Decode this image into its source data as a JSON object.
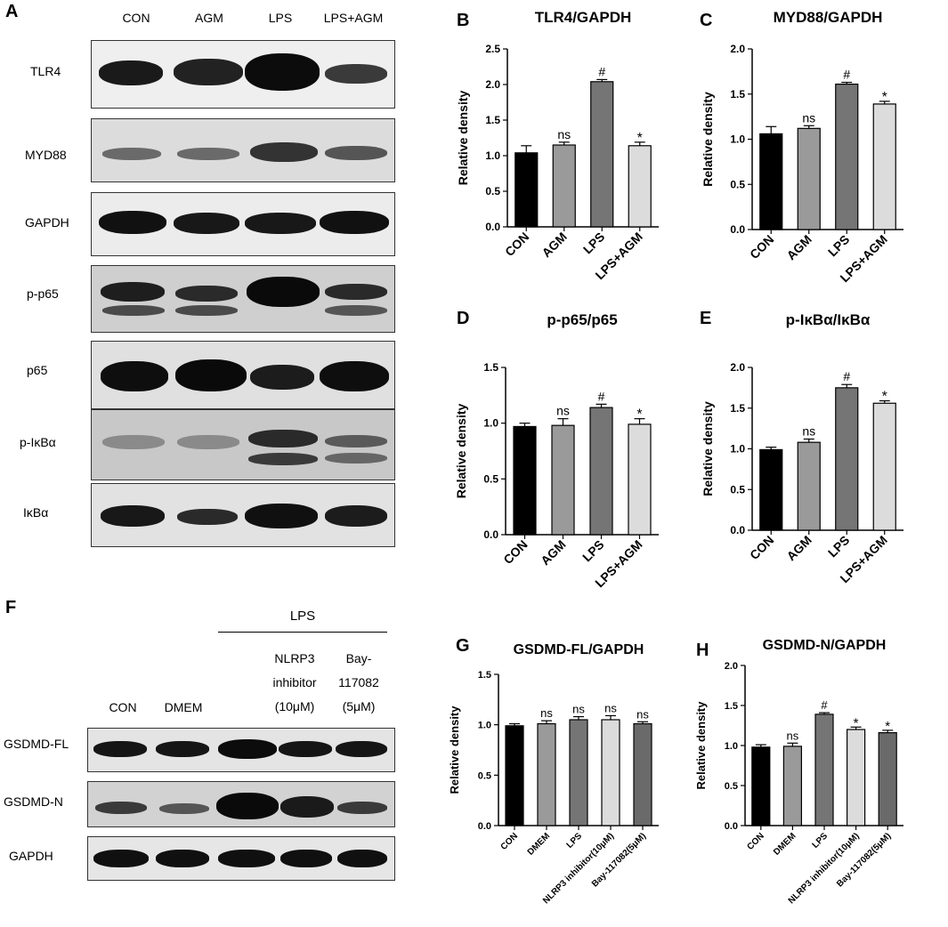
{
  "panel_letters": [
    "A",
    "B",
    "C",
    "D",
    "E",
    "F",
    "G",
    "H"
  ],
  "blotA": {
    "lanes": [
      "CON",
      "AGM",
      "LPS",
      "LPS+AGM"
    ],
    "rows": [
      "TLR4",
      "MYD88",
      "GAPDH",
      "p-p65",
      "p65",
      "p-IκBα",
      "IκBα"
    ]
  },
  "blotF": {
    "lps_label": "LPS",
    "lanes": [
      "CON",
      "DMEM",
      "",
      "NLRP3\ninhibitor\n(10μM)",
      "Bay-\n117082\n(5μM)"
    ],
    "rows": [
      "GSDMD-FL",
      "GSDMD-N",
      "GAPDH"
    ]
  },
  "chart_data": [
    {
      "id": "B",
      "type": "bar",
      "title": "TLR4/GAPDH",
      "ylabel": "Relative density",
      "categories": [
        "CON",
        "AGM",
        "LPS",
        "LPS+AGM"
      ],
      "values": [
        1.04,
        1.15,
        2.04,
        1.14
      ],
      "errors": [
        0.1,
        0.04,
        0.03,
        0.05
      ],
      "annotations": [
        "",
        "ns",
        "#",
        "*"
      ],
      "ylim": [
        0,
        2.5
      ],
      "yticks": [
        "0.0",
        "0.5",
        "1.0",
        "1.5",
        "2.0",
        "2.5"
      ],
      "colors": [
        "#000000",
        "#9a9a9a",
        "#757575",
        "#dcdcdc"
      ]
    },
    {
      "id": "C",
      "type": "bar",
      "title": "MYD88/GAPDH",
      "ylabel": "Relative density",
      "categories": [
        "CON",
        "AGM",
        "LPS",
        "LPS+AGM"
      ],
      "values": [
        1.06,
        1.12,
        1.61,
        1.39
      ],
      "errors": [
        0.08,
        0.03,
        0.02,
        0.03
      ],
      "annotations": [
        "",
        "ns",
        "#",
        "*"
      ],
      "ylim": [
        0,
        2.0
      ],
      "yticks": [
        "0.0",
        "0.5",
        "1.0",
        "1.5",
        "2.0"
      ],
      "colors": [
        "#000000",
        "#9a9a9a",
        "#757575",
        "#dcdcdc"
      ]
    },
    {
      "id": "D",
      "type": "bar",
      "title": "p-p65/p65",
      "ylabel": "Relative density",
      "categories": [
        "CON",
        "AGM",
        "LPS",
        "LPS+AGM"
      ],
      "values": [
        0.97,
        0.98,
        1.14,
        0.99
      ],
      "errors": [
        0.03,
        0.06,
        0.03,
        0.05
      ],
      "annotations": [
        "",
        "ns",
        "#",
        "*"
      ],
      "ylim": [
        0,
        1.5
      ],
      "yticks": [
        "0.0",
        "0.5",
        "1.0",
        "1.5"
      ],
      "colors": [
        "#000000",
        "#9a9a9a",
        "#757575",
        "#dcdcdc"
      ]
    },
    {
      "id": "E",
      "type": "bar",
      "title": "p-IκBα/IκBα",
      "ylabel": "Relative density",
      "categories": [
        "CON",
        "AGM",
        "LPS",
        "LPS+AGM"
      ],
      "values": [
        0.99,
        1.08,
        1.75,
        1.56
      ],
      "errors": [
        0.03,
        0.04,
        0.04,
        0.03
      ],
      "annotations": [
        "",
        "ns",
        "#",
        "*"
      ],
      "ylim": [
        0,
        2.0
      ],
      "yticks": [
        "0.0",
        "0.5",
        "1.0",
        "1.5",
        "2.0"
      ],
      "colors": [
        "#000000",
        "#9a9a9a",
        "#757575",
        "#dcdcdc"
      ]
    },
    {
      "id": "G",
      "type": "bar",
      "title": "GSDMD-FL/GAPDH",
      "ylabel": "Relative density",
      "categories": [
        "CON",
        "DMEM",
        "LPS",
        "NLRP3 inhibitor(10μM)",
        "Bay-117082(5μM)"
      ],
      "values": [
        0.99,
        1.01,
        1.05,
        1.05,
        1.01
      ],
      "errors": [
        0.02,
        0.03,
        0.03,
        0.04,
        0.02
      ],
      "annotations": [
        "",
        "ns",
        "ns",
        "ns",
        "ns"
      ],
      "ylim": [
        0,
        1.5
      ],
      "yticks": [
        "0.0",
        "0.5",
        "1.0",
        "1.5"
      ],
      "colors": [
        "#000000",
        "#9a9a9a",
        "#757575",
        "#dcdcdc",
        "#6a6a6a"
      ]
    },
    {
      "id": "H",
      "type": "bar",
      "title": "GSDMD-N/GAPDH",
      "ylabel": "Relative density",
      "categories": [
        "CON",
        "DMEM",
        "LPS",
        "NLRP3 inhibitor(10μM)",
        "Bay-117082(5μM)"
      ],
      "values": [
        0.98,
        0.99,
        1.39,
        1.2,
        1.16
      ],
      "errors": [
        0.03,
        0.04,
        0.02,
        0.03,
        0.03
      ],
      "annotations": [
        "",
        "ns",
        "#",
        "*",
        "*"
      ],
      "ylim": [
        0,
        2.0
      ],
      "yticks": [
        "0.0",
        "0.5",
        "1.0",
        "1.5",
        "2.0"
      ],
      "colors": [
        "#000000",
        "#9a9a9a",
        "#757575",
        "#dcdcdc",
        "#6a6a6a"
      ]
    }
  ]
}
